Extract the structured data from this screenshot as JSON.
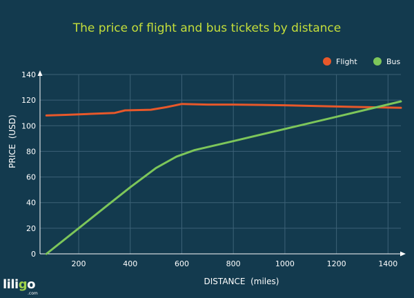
{
  "chart_data": {
    "type": "line",
    "title": "The price of flight and bus tickets by distance",
    "xlabel": "DISTANCE  (miles)",
    "ylabel": "PRICE  (USD)",
    "xlim": [
      50,
      1450
    ],
    "ylim": [
      0,
      140
    ],
    "xticks": [
      200,
      400,
      600,
      800,
      1000,
      1200,
      1400
    ],
    "yticks": [
      0,
      20,
      40,
      60,
      80,
      100,
      120,
      140
    ],
    "grid": true,
    "legend": "top-right",
    "series": [
      {
        "name": "Flight",
        "color": "#e8582a",
        "points": [
          [
            75,
            108
          ],
          [
            150,
            108.5
          ],
          [
            250,
            109.3
          ],
          [
            340,
            110
          ],
          [
            380,
            112
          ],
          [
            480,
            112.5
          ],
          [
            540,
            114.5
          ],
          [
            600,
            117
          ],
          [
            700,
            116.5
          ],
          [
            800,
            116.5
          ],
          [
            1000,
            116
          ],
          [
            1200,
            115
          ],
          [
            1450,
            114
          ]
        ]
      },
      {
        "name": "Bus",
        "color": "#7dc65a",
        "points": [
          [
            75,
            0
          ],
          [
            200,
            20
          ],
          [
            300,
            36
          ],
          [
            400,
            52
          ],
          [
            500,
            67
          ],
          [
            580,
            76
          ],
          [
            650,
            81
          ],
          [
            800,
            88
          ],
          [
            1000,
            97.5
          ],
          [
            1200,
            107
          ],
          [
            1450,
            119
          ]
        ]
      }
    ]
  },
  "brand": {
    "logo": "liligo",
    "logo_sub": ".com"
  }
}
